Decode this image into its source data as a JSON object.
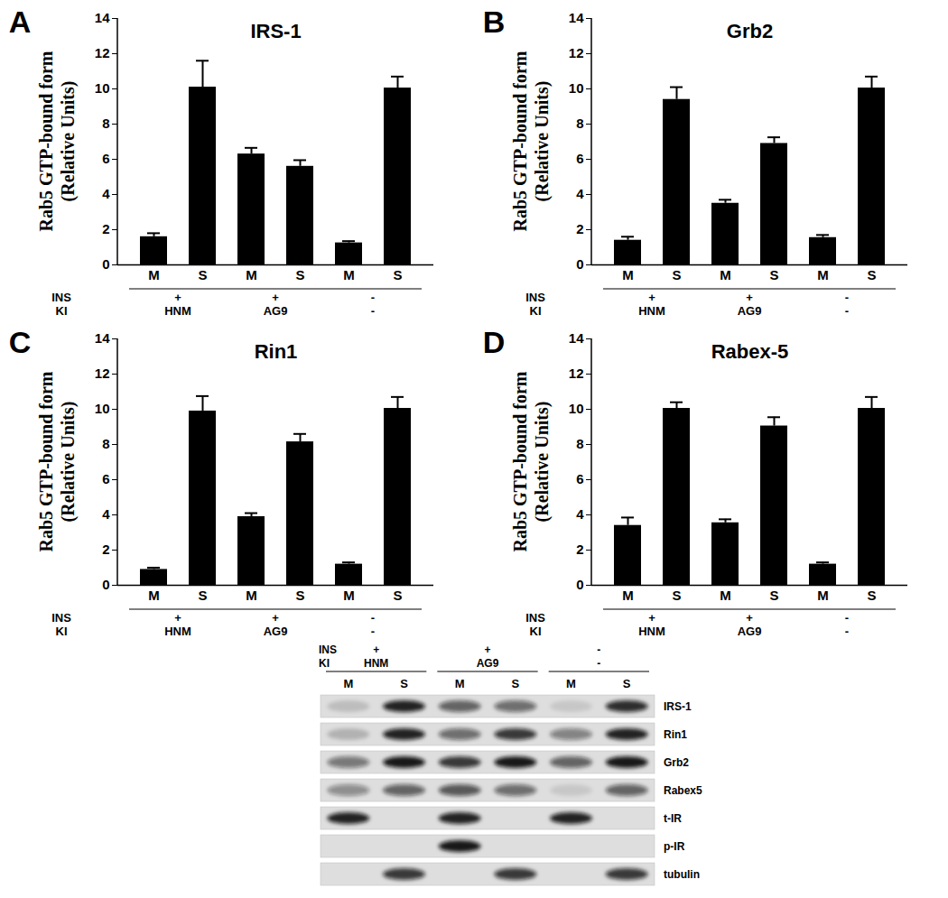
{
  "chart_data": [
    {
      "type": "bar",
      "panel": "A",
      "title": "IRS-1",
      "y_label": [
        "Rab5 GTP-bound form",
        "(Relative Units)"
      ],
      "categories": [
        "M",
        "S",
        "M",
        "S",
        "M",
        "S"
      ],
      "values": [
        1.6,
        10.1,
        6.3,
        5.6,
        1.25,
        10.05
      ],
      "errors": [
        0.2,
        1.5,
        0.35,
        0.35,
        0.1,
        0.65
      ],
      "color": "#000000",
      "ylim": [
        0,
        14
      ],
      "yticks": [
        0,
        2,
        4,
        6,
        8,
        10,
        12,
        14
      ],
      "group_rows": [
        {
          "label": "INS",
          "values": [
            "+",
            "+",
            "-"
          ]
        },
        {
          "label": "KI",
          "values": [
            "HNM",
            "AG9",
            "-"
          ]
        }
      ]
    },
    {
      "type": "bar",
      "panel": "B",
      "title": "Grb2",
      "y_label": [
        "Rab5 GTP-bound form",
        "(Relative Units)"
      ],
      "categories": [
        "M",
        "S",
        "M",
        "S",
        "M",
        "S"
      ],
      "values": [
        1.4,
        9.4,
        3.5,
        6.9,
        1.55,
        10.05
      ],
      "errors": [
        0.2,
        0.7,
        0.2,
        0.35,
        0.15,
        0.65
      ],
      "color": "#000000",
      "ylim": [
        0,
        14
      ],
      "yticks": [
        0,
        2,
        4,
        6,
        8,
        10,
        12,
        14
      ],
      "group_rows": [
        {
          "label": "INS",
          "values": [
            "+",
            "+",
            "-"
          ]
        },
        {
          "label": "KI",
          "values": [
            "HNM",
            "AG9",
            "-"
          ]
        }
      ]
    },
    {
      "type": "bar",
      "panel": "C",
      "title": "Rin1",
      "y_label": [
        "Rab5 GTP-bound form",
        "(Relative Units)"
      ],
      "categories": [
        "M",
        "S",
        "M",
        "S",
        "M",
        "S"
      ],
      "values": [
        0.9,
        9.9,
        3.9,
        8.15,
        1.2,
        10.05
      ],
      "errors": [
        0.1,
        0.85,
        0.2,
        0.45,
        0.1,
        0.65
      ],
      "color": "#000000",
      "ylim": [
        0,
        14
      ],
      "yticks": [
        0,
        2,
        4,
        6,
        8,
        10,
        12,
        14
      ],
      "group_rows": [
        {
          "label": "INS",
          "values": [
            "+",
            "+",
            "-"
          ]
        },
        {
          "label": "KI",
          "values": [
            "HNM",
            "AG9",
            "-"
          ]
        }
      ]
    },
    {
      "type": "bar",
      "panel": "D",
      "title": "Rabex-5",
      "y_label": [
        "Rab5 GTP-bound form",
        "(Relative Units)"
      ],
      "categories": [
        "M",
        "S",
        "M",
        "S",
        "M",
        "S"
      ],
      "values": [
        3.4,
        10.05,
        3.55,
        9.05,
        1.2,
        10.05
      ],
      "errors": [
        0.45,
        0.35,
        0.2,
        0.5,
        0.1,
        0.65
      ],
      "color": "#000000",
      "ylim": [
        0,
        14
      ],
      "yticks": [
        0,
        2,
        4,
        6,
        8,
        10,
        12,
        14
      ],
      "group_rows": [
        {
          "label": "INS",
          "values": [
            "+",
            "+",
            "-"
          ]
        },
        {
          "label": "KI",
          "values": [
            "HNM",
            "AG9",
            "-"
          ]
        }
      ]
    }
  ],
  "blot": {
    "group_rows": [
      {
        "label": "INS",
        "values": [
          "+",
          "+",
          "-"
        ]
      },
      {
        "label": "KI",
        "values": [
          "HNM",
          "AG9",
          "-"
        ]
      }
    ],
    "lanes": [
      "M",
      "S",
      "M",
      "S",
      "M",
      "S"
    ],
    "rows": [
      {
        "label": "IRS-1",
        "intensity": [
          0.15,
          0.9,
          0.6,
          0.55,
          0.1,
          0.85
        ]
      },
      {
        "label": "Rin1",
        "intensity": [
          0.2,
          0.9,
          0.55,
          0.8,
          0.45,
          0.9
        ]
      },
      {
        "label": "Grb2",
        "intensity": [
          0.5,
          0.95,
          0.8,
          0.95,
          0.6,
          0.95
        ]
      },
      {
        "label": "Rabex5",
        "intensity": [
          0.4,
          0.6,
          0.65,
          0.55,
          0.1,
          0.6
        ]
      },
      {
        "label": "t-IR",
        "intensity": [
          0.9,
          0,
          0.9,
          0,
          0.9,
          0
        ]
      },
      {
        "label": "p-IR",
        "intensity": [
          0,
          0,
          0.95,
          0,
          0,
          0
        ]
      },
      {
        "label": "tubulin",
        "intensity": [
          0,
          0.8,
          0,
          0.8,
          0,
          0.8
        ]
      }
    ]
  }
}
